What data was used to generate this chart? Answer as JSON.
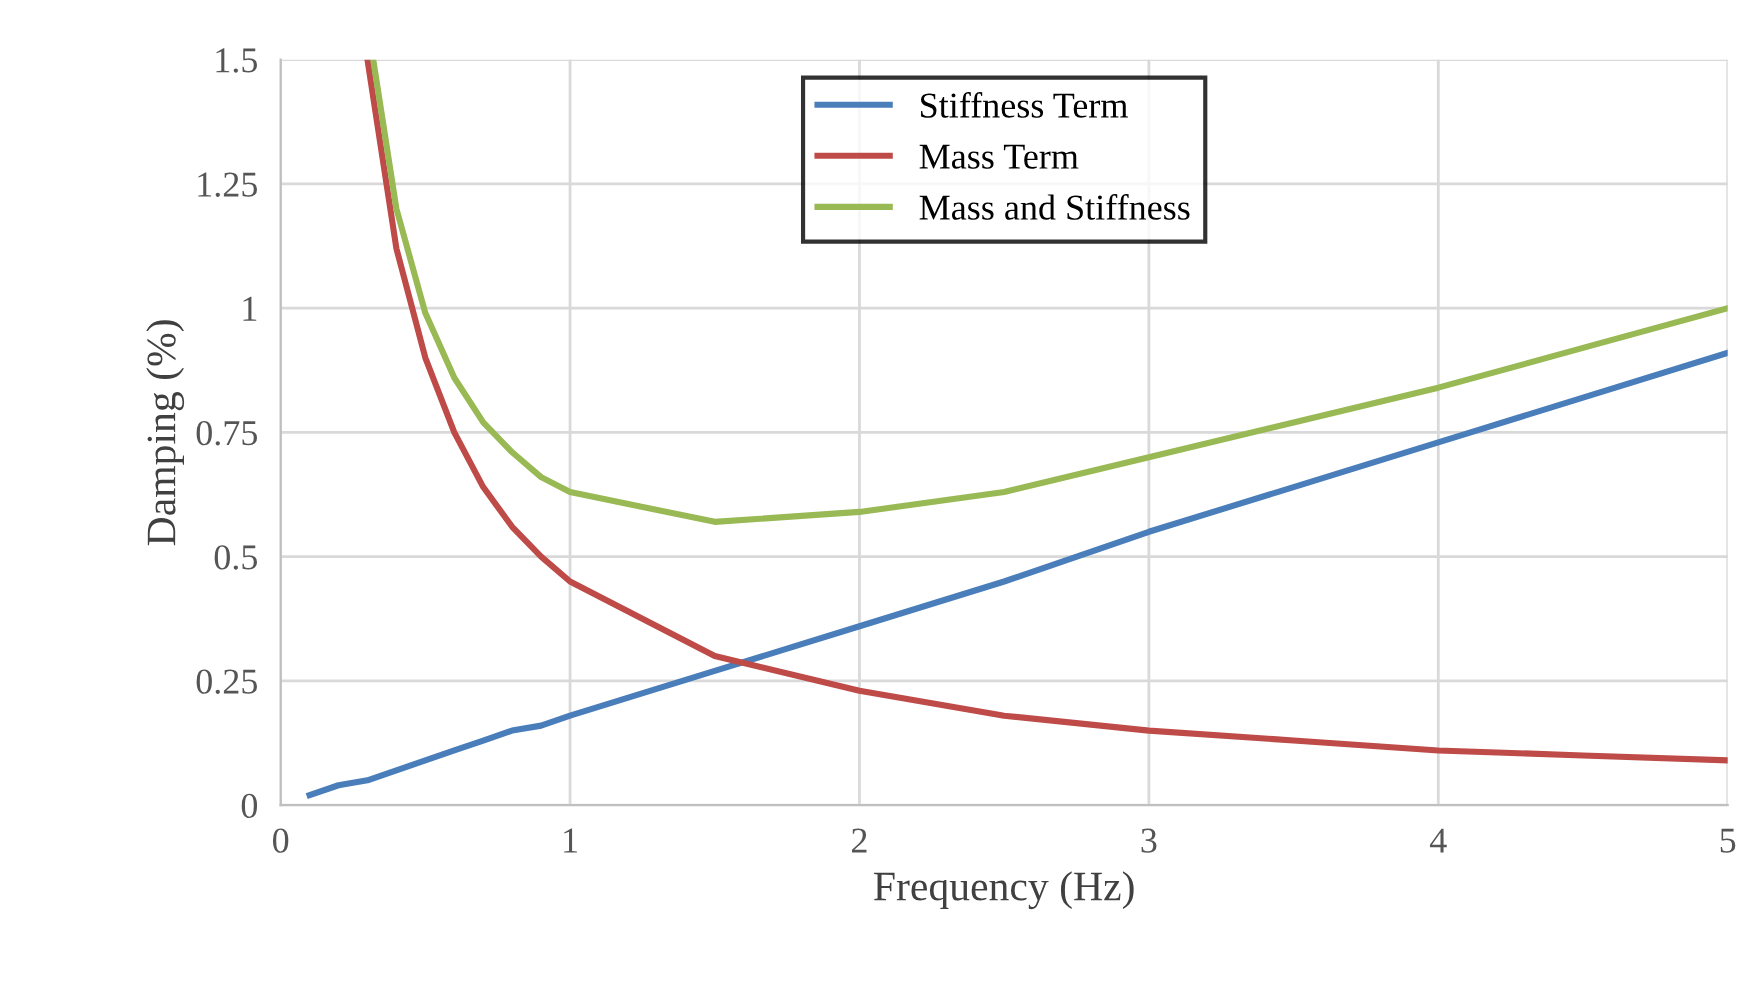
{
  "chart_data": {
    "type": "line",
    "xlabel": "Frequency (Hz)",
    "ylabel": "Damping (%)",
    "x": [
      0.1,
      0.2,
      0.3,
      0.4,
      0.5,
      0.6,
      0.7,
      0.8,
      0.9,
      1,
      1.5,
      2,
      2.5,
      3,
      3.5,
      4,
      4.5,
      5
    ],
    "series": [
      {
        "name": "Stiffness Term",
        "color": "#4a7ebb",
        "values": [
          0.02,
          0.04,
          0.05,
          0.07,
          0.09,
          0.11,
          0.13,
          0.15,
          0.16,
          0.18,
          0.27,
          0.36,
          0.45,
          0.55,
          0.64,
          0.73,
          0.82,
          0.91
        ]
      },
      {
        "name": "Mass Term",
        "color": "#be4b48",
        "values": [
          null,
          null,
          1.5,
          1.12,
          0.9,
          0.75,
          0.64,
          0.56,
          0.5,
          0.45,
          0.3,
          0.23,
          0.18,
          0.15,
          0.13,
          0.11,
          0.1,
          0.09
        ]
      },
      {
        "name": "Mass and Stiffness",
        "color": "#98b954",
        "x": [
          0.32,
          0.4,
          0.5,
          0.6,
          0.7,
          0.8,
          0.9,
          1,
          1.5,
          2,
          2.5,
          3,
          3.5,
          4,
          4.5,
          5
        ],
        "values": [
          1.5,
          1.2,
          0.99,
          0.86,
          0.77,
          0.71,
          0.66,
          0.63,
          0.57,
          0.59,
          0.63,
          0.7,
          0.77,
          0.84,
          0.92,
          1.0
        ]
      }
    ],
    "xlim": [
      0,
      5
    ],
    "xticks": [
      0,
      1,
      2,
      3,
      4,
      5
    ],
    "ylim": [
      0,
      1.5
    ],
    "yticks": [
      0,
      0.25,
      0.5,
      0.75,
      1,
      1.25,
      1.5
    ],
    "grid": true,
    "legend": "top",
    "marker": "none",
    "line_style": "solid"
  }
}
